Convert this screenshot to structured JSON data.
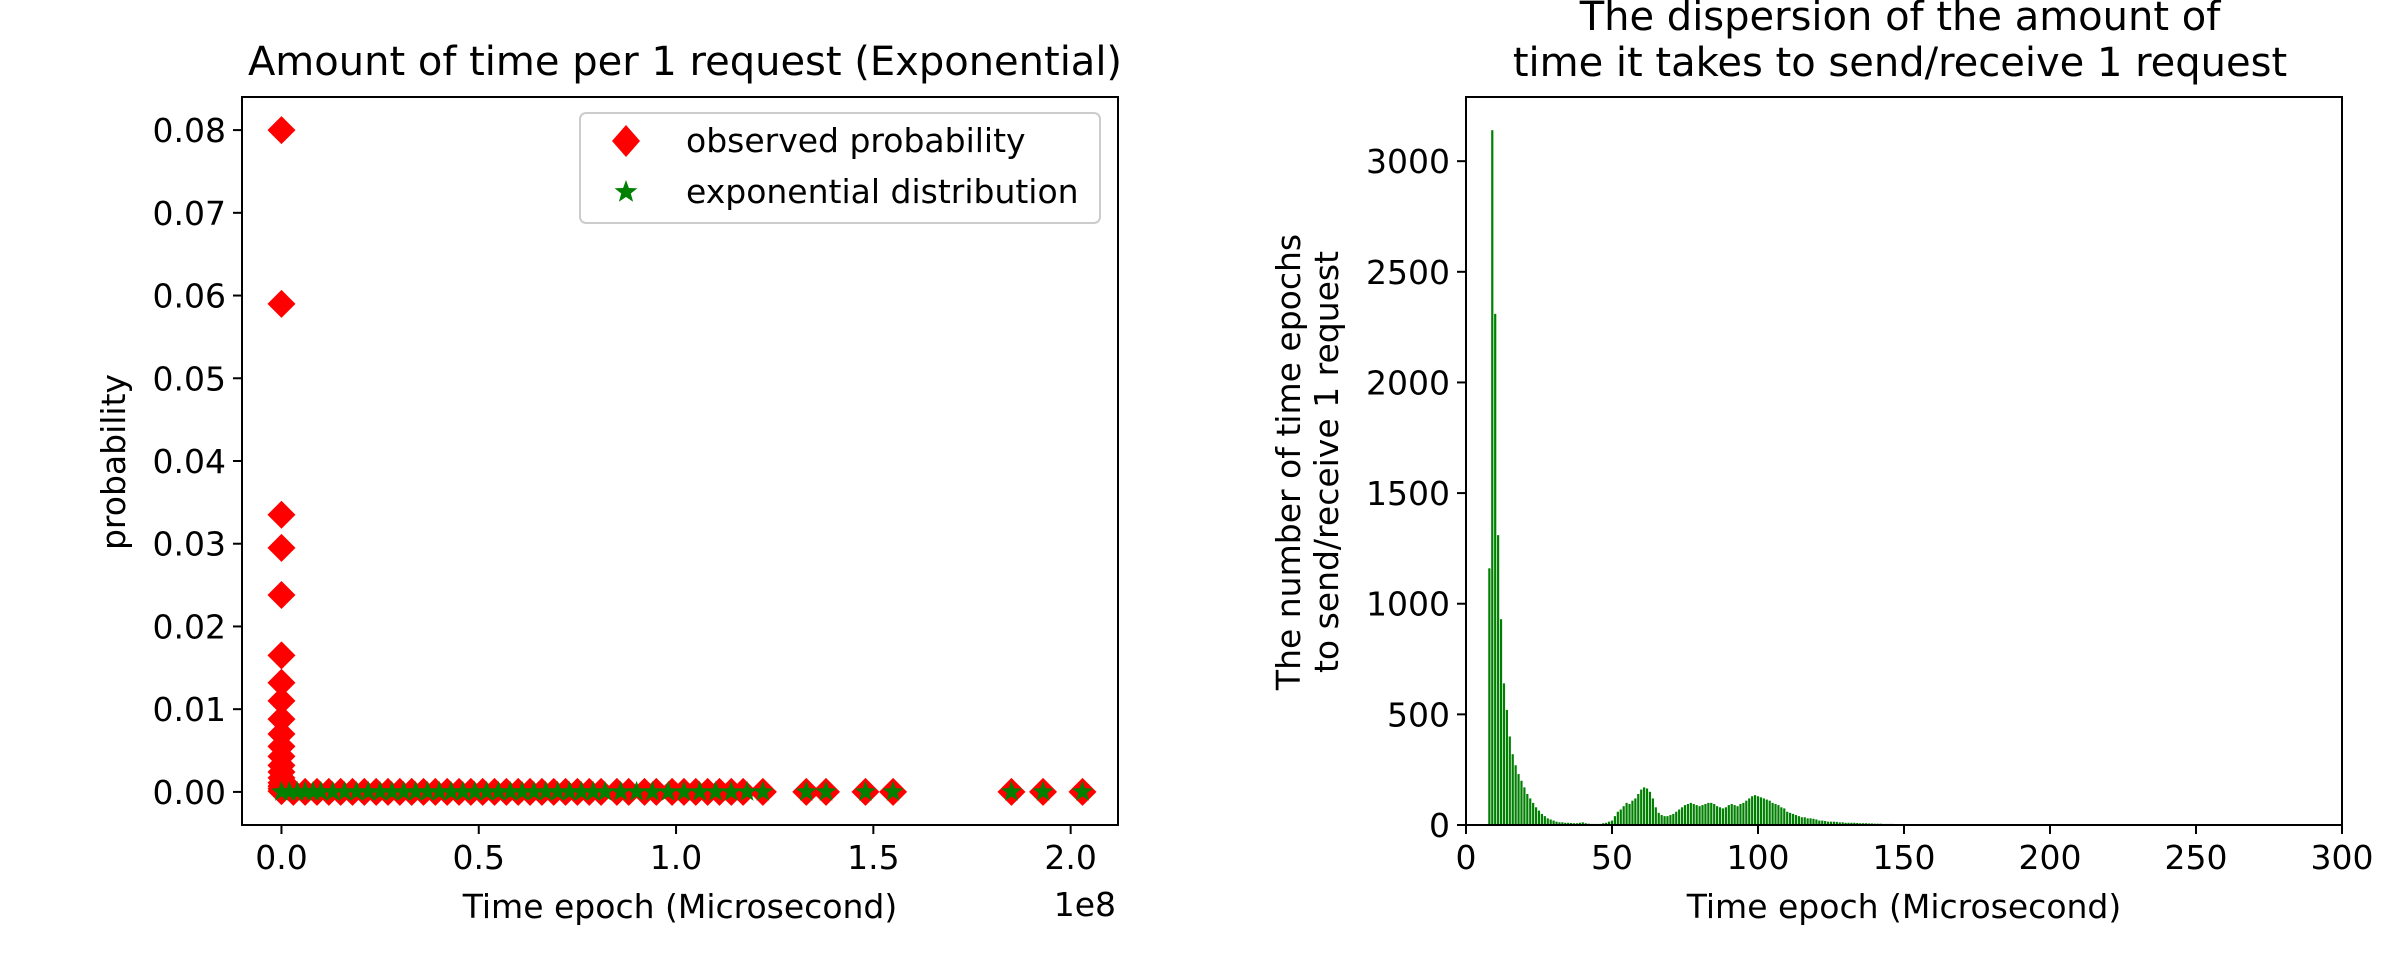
{
  "figure": {
    "left_panel": {
      "title": "Amount of time per 1 request (Exponential)",
      "xlabel": "Time epoch (Microsecond)",
      "ylabel": "probability",
      "x_offset_label": "1e8",
      "legend": [
        "observed probability",
        "exponential distribution"
      ]
    },
    "right_panel": {
      "title_line1": "The dispersion of the amount of",
      "title_line2": "time it takes to send/receive 1 request",
      "xlabel": "Time epoch (Microsecond)",
      "ylabel_line1": "The number of time epochs",
      "ylabel_line2": "to send/receive 1 request"
    }
  },
  "chart_data": [
    {
      "type": "scatter",
      "title": "Amount of time per 1 request (Exponential)",
      "xlabel": "Time epoch (Microsecond)",
      "ylabel": "probability",
      "x_scale_note": "1e8",
      "xlim": [
        -0.1,
        2.12
      ],
      "ylim": [
        -0.004,
        0.084
      ],
      "x_ticks": [
        0.0,
        0.5,
        1.0,
        1.5,
        2.0
      ],
      "x_tick_labels": [
        "0.0",
        "0.5",
        "1.0",
        "1.5",
        "2.0"
      ],
      "y_ticks": [
        0.0,
        0.01,
        0.02,
        0.03,
        0.04,
        0.05,
        0.06,
        0.07,
        0.08
      ],
      "y_tick_labels": [
        "0.00",
        "0.01",
        "0.02",
        "0.03",
        "0.04",
        "0.05",
        "0.06",
        "0.07",
        "0.08"
      ],
      "legend_position": "top-right",
      "series": [
        {
          "name": "observed probability",
          "marker": "diamond",
          "color": "#ff0000",
          "x": [
            0.0,
            0.0,
            0.0,
            0.0,
            0.0,
            0.0,
            0.0,
            0.0,
            0.0,
            0.0,
            0.0,
            0.0,
            0.0,
            0.0,
            0.0,
            0.0,
            0.0,
            0.0,
            0.0,
            0.03,
            0.06,
            0.09,
            0.12,
            0.15,
            0.18,
            0.21,
            0.24,
            0.27,
            0.3,
            0.33,
            0.36,
            0.39,
            0.42,
            0.45,
            0.48,
            0.51,
            0.54,
            0.57,
            0.6,
            0.63,
            0.66,
            0.69,
            0.72,
            0.75,
            0.78,
            0.81,
            0.85,
            0.88,
            0.92,
            0.95,
            0.99,
            1.02,
            1.05,
            1.08,
            1.11,
            1.14,
            1.17,
            1.22,
            1.33,
            1.38,
            1.48,
            1.55,
            1.85,
            1.93,
            2.03
          ],
          "y": [
            0.08,
            0.059,
            0.0335,
            0.0295,
            0.0238,
            0.0165,
            0.0132,
            0.011,
            0.0088,
            0.007,
            0.0055,
            0.0043,
            0.0032,
            0.0024,
            0.0017,
            0.0011,
            0.0007,
            0.0004,
            0.0001,
            0.0,
            0.0,
            0.0,
            0.0,
            0.0,
            0.0,
            0.0,
            0.0,
            0.0,
            0.0,
            0.0,
            0.0,
            0.0,
            0.0,
            0.0,
            0.0,
            0.0,
            0.0,
            0.0,
            0.0,
            0.0,
            0.0,
            0.0,
            0.0,
            0.0,
            0.0,
            0.0,
            0.0,
            0.0,
            0.0,
            0.0,
            0.0,
            0.0,
            0.0,
            0.0,
            0.0,
            0.0,
            0.0,
            0.0,
            0.0,
            0.0,
            0.0,
            0.0,
            0.0,
            0.0,
            0.0
          ]
        },
        {
          "name": "exponential distribution",
          "marker": "star",
          "color": "#008000",
          "x": [
            0.0,
            0.02,
            0.04,
            0.06,
            0.08,
            0.1,
            0.13,
            0.16,
            0.19,
            0.22,
            0.25,
            0.28,
            0.31,
            0.34,
            0.37,
            0.4,
            0.43,
            0.46,
            0.49,
            0.52,
            0.55,
            0.58,
            0.61,
            0.64,
            0.67,
            0.7,
            0.73,
            0.76,
            0.79,
            0.82,
            0.86,
            0.9,
            0.94,
            0.98,
            1.02,
            1.06,
            1.1,
            1.14,
            1.18,
            1.22,
            1.33,
            1.38,
            1.48,
            1.55,
            1.85,
            1.93,
            2.03
          ],
          "y": [
            0.0,
            0.0,
            0.0,
            0.0,
            0.0,
            0.0,
            0.0,
            0.0,
            0.0,
            0.0,
            0.0,
            0.0,
            0.0,
            0.0,
            0.0,
            0.0,
            0.0,
            0.0,
            0.0,
            0.0,
            0.0,
            0.0,
            0.0,
            0.0,
            0.0,
            0.0,
            0.0,
            0.0,
            0.0,
            0.0,
            0.0,
            0.0,
            0.0,
            0.0,
            0.0,
            0.0,
            0.0,
            0.0,
            0.0,
            0.0,
            0.0,
            0.0,
            0.0,
            0.0,
            0.0,
            0.0,
            0.0
          ]
        }
      ]
    },
    {
      "type": "bar",
      "title": "The dispersion of the amount of time it takes to send/receive 1 request",
      "xlabel": "Time epoch (Microsecond)",
      "ylabel": "The number of time epochs to send/receive 1 request",
      "color": "#008000",
      "xlim": [
        0,
        300
      ],
      "ylim": [
        0,
        3290
      ],
      "x_ticks": [
        0,
        50,
        100,
        150,
        200,
        250,
        300
      ],
      "x_tick_labels": [
        "0",
        "50",
        "100",
        "150",
        "200",
        "250",
        "300"
      ],
      "y_ticks": [
        0,
        500,
        1000,
        1500,
        2000,
        2500,
        3000
      ],
      "y_tick_labels": [
        "0",
        "500",
        "1000",
        "1500",
        "2000",
        "2500",
        "3000"
      ],
      "x": [
        8,
        9,
        10,
        11,
        12,
        13,
        14,
        15,
        16,
        17,
        18,
        19,
        20,
        21,
        22,
        23,
        24,
        25,
        26,
        27,
        28,
        29,
        30,
        31,
        32,
        33,
        34,
        35,
        36,
        37,
        38,
        39,
        40,
        41,
        42,
        43,
        44,
        45,
        46,
        47,
        48,
        49,
        50,
        51,
        52,
        53,
        54,
        55,
        56,
        57,
        58,
        59,
        60,
        61,
        62,
        63,
        64,
        65,
        66,
        67,
        68,
        69,
        70,
        71,
        72,
        73,
        74,
        75,
        76,
        77,
        78,
        79,
        80,
        81,
        82,
        83,
        84,
        85,
        86,
        87,
        88,
        89,
        90,
        91,
        92,
        93,
        94,
        95,
        96,
        97,
        98,
        99,
        100,
        101,
        102,
        103,
        104,
        105,
        106,
        107,
        108,
        109,
        110,
        111,
        112,
        113,
        114,
        115,
        116,
        117,
        118,
        119,
        120,
        121,
        122,
        123,
        124,
        125,
        126,
        127,
        128,
        129,
        130,
        131,
        132,
        133,
        134,
        135,
        136,
        137,
        138,
        139,
        140,
        141,
        142,
        143,
        144,
        145,
        146,
        147,
        148,
        149,
        150,
        151,
        152,
        153,
        154,
        155,
        156,
        157,
        158,
        159,
        160,
        161,
        162,
        163,
        164,
        165,
        166,
        167,
        168,
        169,
        170,
        171,
        172,
        173,
        174,
        175,
        176,
        177,
        178,
        179,
        180
      ],
      "values": [
        1160,
        3140,
        2310,
        1310,
        930,
        640,
        520,
        400,
        320,
        270,
        230,
        200,
        170,
        140,
        120,
        100,
        80,
        65,
        50,
        40,
        30,
        25,
        20,
        15,
        12,
        12,
        10,
        10,
        9,
        8,
        8,
        10,
        12,
        8,
        6,
        5,
        5,
        5,
        5,
        8,
        10,
        15,
        20,
        40,
        60,
        70,
        85,
        100,
        95,
        110,
        120,
        140,
        160,
        170,
        165,
        150,
        120,
        80,
        55,
        45,
        40,
        40,
        45,
        50,
        60,
        70,
        80,
        90,
        95,
        100,
        95,
        90,
        85,
        90,
        95,
        100,
        100,
        95,
        85,
        80,
        75,
        80,
        90,
        95,
        90,
        85,
        95,
        100,
        110,
        120,
        130,
        135,
        130,
        125,
        120,
        115,
        110,
        100,
        95,
        90,
        80,
        75,
        60,
        55,
        50,
        45,
        40,
        35,
        35,
        30,
        30,
        28,
        25,
        20,
        20,
        18,
        15,
        15,
        15,
        14,
        12,
        12,
        10,
        10,
        10,
        10,
        9,
        8,
        8,
        8,
        7,
        7,
        6,
        6,
        6,
        5,
        5,
        5,
        5,
        4,
        4,
        4,
        4,
        3,
        3,
        3,
        3,
        3,
        2,
        2,
        2,
        2,
        2,
        2,
        2,
        2,
        1,
        1,
        1,
        1,
        1,
        1,
        1,
        1,
        1,
        1,
        1,
        1,
        1,
        1,
        1,
        1,
        1
      ]
    }
  ]
}
